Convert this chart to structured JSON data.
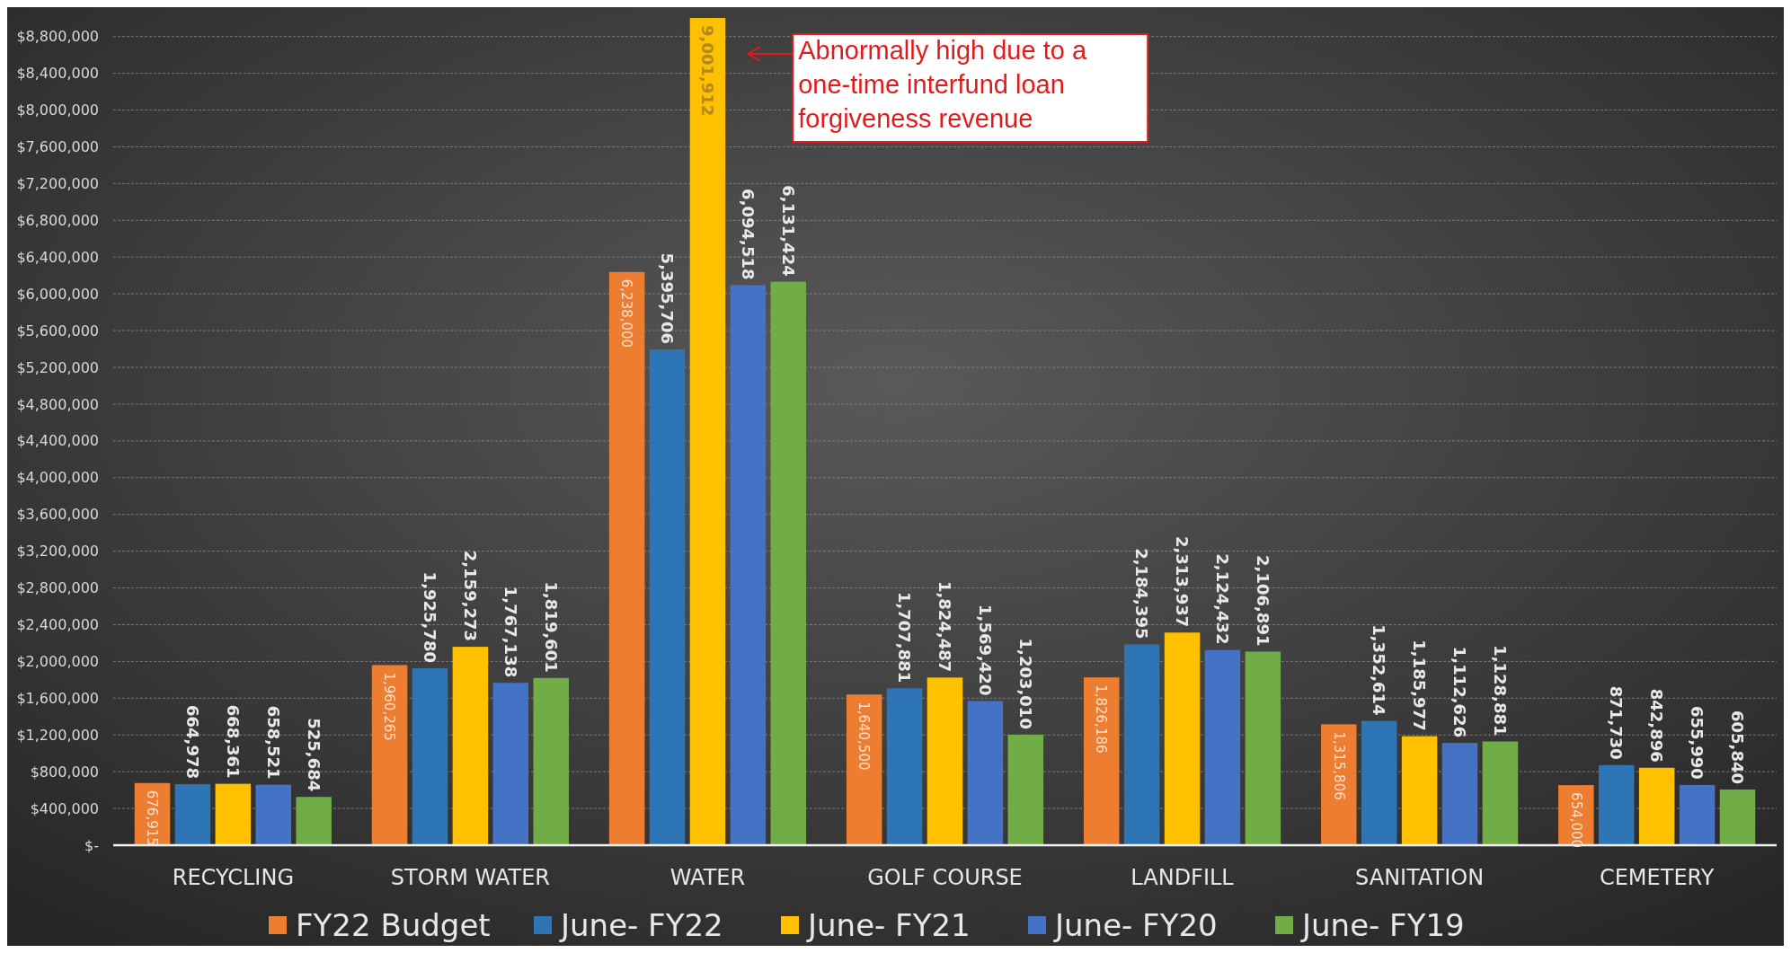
{
  "chart_data": {
    "type": "bar",
    "categories": [
      "RECYCLING",
      "STORM WATER",
      "WATER",
      "GOLF COURSE",
      "LANDFILL",
      "SANITATION",
      "CEMETERY"
    ],
    "series": [
      {
        "name": "FY22 Budget",
        "color": "#ed7d31",
        "values": [
          676915,
          1960265,
          6238000,
          1640500,
          1826186,
          1315806,
          654000
        ],
        "value_labels": [
          "676,915",
          "1,960,265",
          "6,238,000",
          "1,640,500",
          "1,826,186",
          "1,315,806",
          "654,000"
        ]
      },
      {
        "name": "June- FY22",
        "color": "#2e75b6",
        "values": [
          664978,
          1925780,
          5395706,
          1707881,
          2184395,
          1352614,
          871730
        ],
        "value_labels": [
          "664,978",
          "1,925,780",
          "5,395,706",
          "1,707,881",
          "2,184,395",
          "1,352,614",
          "871,730"
        ]
      },
      {
        "name": "June- FY21",
        "color": "#ffc000",
        "values": [
          668361,
          2159273,
          9001912,
          1824487,
          2313937,
          1185977,
          842896
        ],
        "value_labels": [
          "668,361",
          "2,159,273",
          "9,001,912",
          "1,824,487",
          "2,313,937",
          "1,185,977",
          "842,896"
        ]
      },
      {
        "name": "June- FY20",
        "color": "#4472c4",
        "values": [
          658521,
          1767138,
          6094518,
          1569420,
          2124432,
          1112626,
          655990
        ],
        "value_labels": [
          "658,521",
          "1,767,138",
          "6,094,518",
          "1,569,420",
          "2,124,432",
          "1,112,626",
          "655,990"
        ]
      },
      {
        "name": "June- FY19",
        "color": "#70ad47",
        "values": [
          525684,
          1819601,
          6131424,
          1203010,
          2106891,
          1128881,
          605840
        ],
        "value_labels": [
          "525,684",
          "1,819,601",
          "6,131,424",
          "1,203,010",
          "2,106,891",
          "1,128,881",
          "605,840"
        ]
      }
    ],
    "ylim": [
      0,
      9100000
    ],
    "yticks": [
      {
        "value": 0,
        "label": "$-"
      },
      {
        "value": 400000,
        "label": "$400,000"
      },
      {
        "value": 800000,
        "label": "$800,000"
      },
      {
        "value": 1200000,
        "label": "$1,200,000"
      },
      {
        "value": 1600000,
        "label": "$1,600,000"
      },
      {
        "value": 2000000,
        "label": "$2,000,000"
      },
      {
        "value": 2400000,
        "label": "$2,400,000"
      },
      {
        "value": 2800000,
        "label": "$2,800,000"
      },
      {
        "value": 3200000,
        "label": "$3,200,000"
      },
      {
        "value": 3600000,
        "label": "$3,600,000"
      },
      {
        "value": 4000000,
        "label": "$4,000,000"
      },
      {
        "value": 4400000,
        "label": "$4,400,000"
      },
      {
        "value": 4800000,
        "label": "$4,800,000"
      },
      {
        "value": 5200000,
        "label": "$5,200,000"
      },
      {
        "value": 5600000,
        "label": "$5,600,000"
      },
      {
        "value": 6000000,
        "label": "$6,000,000"
      },
      {
        "value": 6400000,
        "label": "$6,400,000"
      },
      {
        "value": 6800000,
        "label": "$6,800,000"
      },
      {
        "value": 7200000,
        "label": "$7,200,000"
      },
      {
        "value": 7600000,
        "label": "$7,600,000"
      },
      {
        "value": 8000000,
        "label": "$8,000,000"
      },
      {
        "value": 8400000,
        "label": "$8,400,000"
      },
      {
        "value": 8800000,
        "label": "$8,800,000"
      }
    ],
    "grid": "y",
    "legend": "bottom",
    "annotations": [
      "Abnormally high due to a one-time interfund loan forgiveness revenue"
    ]
  }
}
